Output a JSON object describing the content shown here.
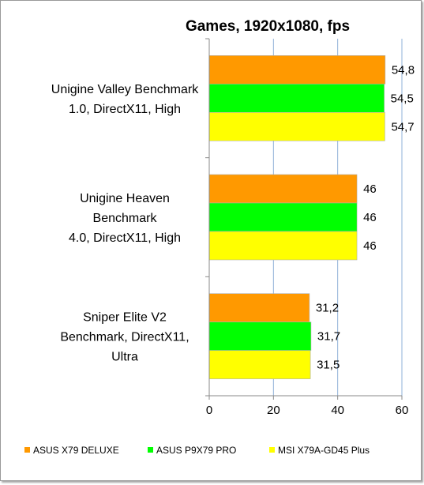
{
  "chart_data": {
    "type": "bar",
    "orientation": "horizontal",
    "title": "Games, 1920x1080, fps",
    "xlabel": "",
    "ylabel": "",
    "xlim": [
      0,
      60
    ],
    "x_ticks": [
      "0",
      "20",
      "40",
      "60"
    ],
    "grid": "vertical major gridlines",
    "legend_position": "bottom",
    "categories": [
      [
        "Unigine Valley Benchmark",
        "1.0, DirectX11, High"
      ],
      [
        "Unigine Heaven",
        "Benchmark",
        "4.0, DirectX11, High"
      ],
      [
        "Sniper Elite V2",
        "Benchmark, DirectX11,",
        "Ultra"
      ]
    ],
    "series": [
      {
        "name": "ASUS X79 DELUXE",
        "color": "#ff9900",
        "values": [
          54.8,
          46,
          31.2
        ],
        "labels": [
          "54,8",
          "46",
          "31,2"
        ]
      },
      {
        "name": "ASUS P9X79 PRO",
        "color": "#00ff00",
        "values": [
          54.5,
          46,
          31.7
        ],
        "labels": [
          "54,5",
          "46",
          "31,7"
        ]
      },
      {
        "name": "MSI X79A-GD45 Plus",
        "color": "#ffff00",
        "values": [
          54.7,
          46,
          31.5
        ],
        "labels": [
          "54,7",
          "46",
          "31,5"
        ]
      }
    ]
  }
}
